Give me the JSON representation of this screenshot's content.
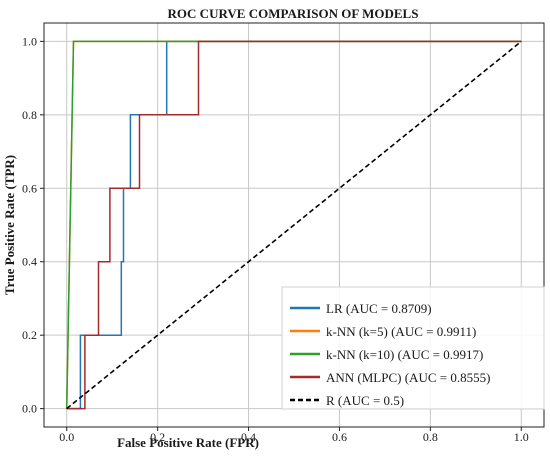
{
  "chart_data": {
    "type": "line",
    "title": "ROC CURVE COMPARISON OF MODELS",
    "xlabel": "False Positive Rate (FPR)",
    "ylabel": "True Positive Rate (TPR)",
    "xlim": [
      -0.05,
      1.05
    ],
    "ylim": [
      -0.05,
      1.05
    ],
    "xticks": [
      "0.0",
      "0.2",
      "0.4",
      "0.6",
      "0.8",
      "1.0"
    ],
    "yticks": [
      "0.0",
      "0.2",
      "0.4",
      "0.6",
      "0.8",
      "1.0"
    ],
    "grid": true,
    "legend_position": "bottom-right",
    "series": [
      {
        "name": "LR (AUC = 0.8709)",
        "color": "#1f77b4",
        "dashed": false,
        "x": [
          0.0,
          0.03,
          0.03,
          0.12,
          0.12,
          0.125,
          0.125,
          0.14,
          0.14,
          0.22,
          0.22,
          0.3,
          1.0
        ],
        "y": [
          0.0,
          0.0,
          0.2,
          0.2,
          0.4,
          0.4,
          0.6,
          0.6,
          0.8,
          0.8,
          1.0,
          1.0,
          1.0
        ]
      },
      {
        "name": "k-NN (k=5) (AUC = 0.9911)",
        "color": "#ff7f0e",
        "dashed": false,
        "x": [
          0.0,
          0.015,
          1.0
        ],
        "y": [
          0.0,
          1.0,
          1.0
        ]
      },
      {
        "name": "k-NN (k=10) (AUC = 0.9917)",
        "color": "#2ca02c",
        "dashed": false,
        "x": [
          0.0,
          0.015,
          1.0
        ],
        "y": [
          0.0,
          1.0,
          1.0
        ]
      },
      {
        "name": "ANN (MLPC) (AUC = 0.8555)",
        "color": "#a52a2a",
        "dashed": false,
        "x": [
          0.0,
          0.04,
          0.04,
          0.07,
          0.07,
          0.095,
          0.095,
          0.16,
          0.16,
          0.22,
          0.22,
          0.29,
          0.29,
          1.0
        ],
        "y": [
          0.0,
          0.0,
          0.2,
          0.2,
          0.4,
          0.4,
          0.6,
          0.6,
          0.8,
          0.8,
          0.8,
          0.8,
          1.0,
          1.0
        ]
      },
      {
        "name": "R (AUC = 0.5)",
        "color": "#000000",
        "dashed": true,
        "x": [
          0.0,
          1.0
        ],
        "y": [
          0.0,
          1.0
        ]
      }
    ]
  }
}
